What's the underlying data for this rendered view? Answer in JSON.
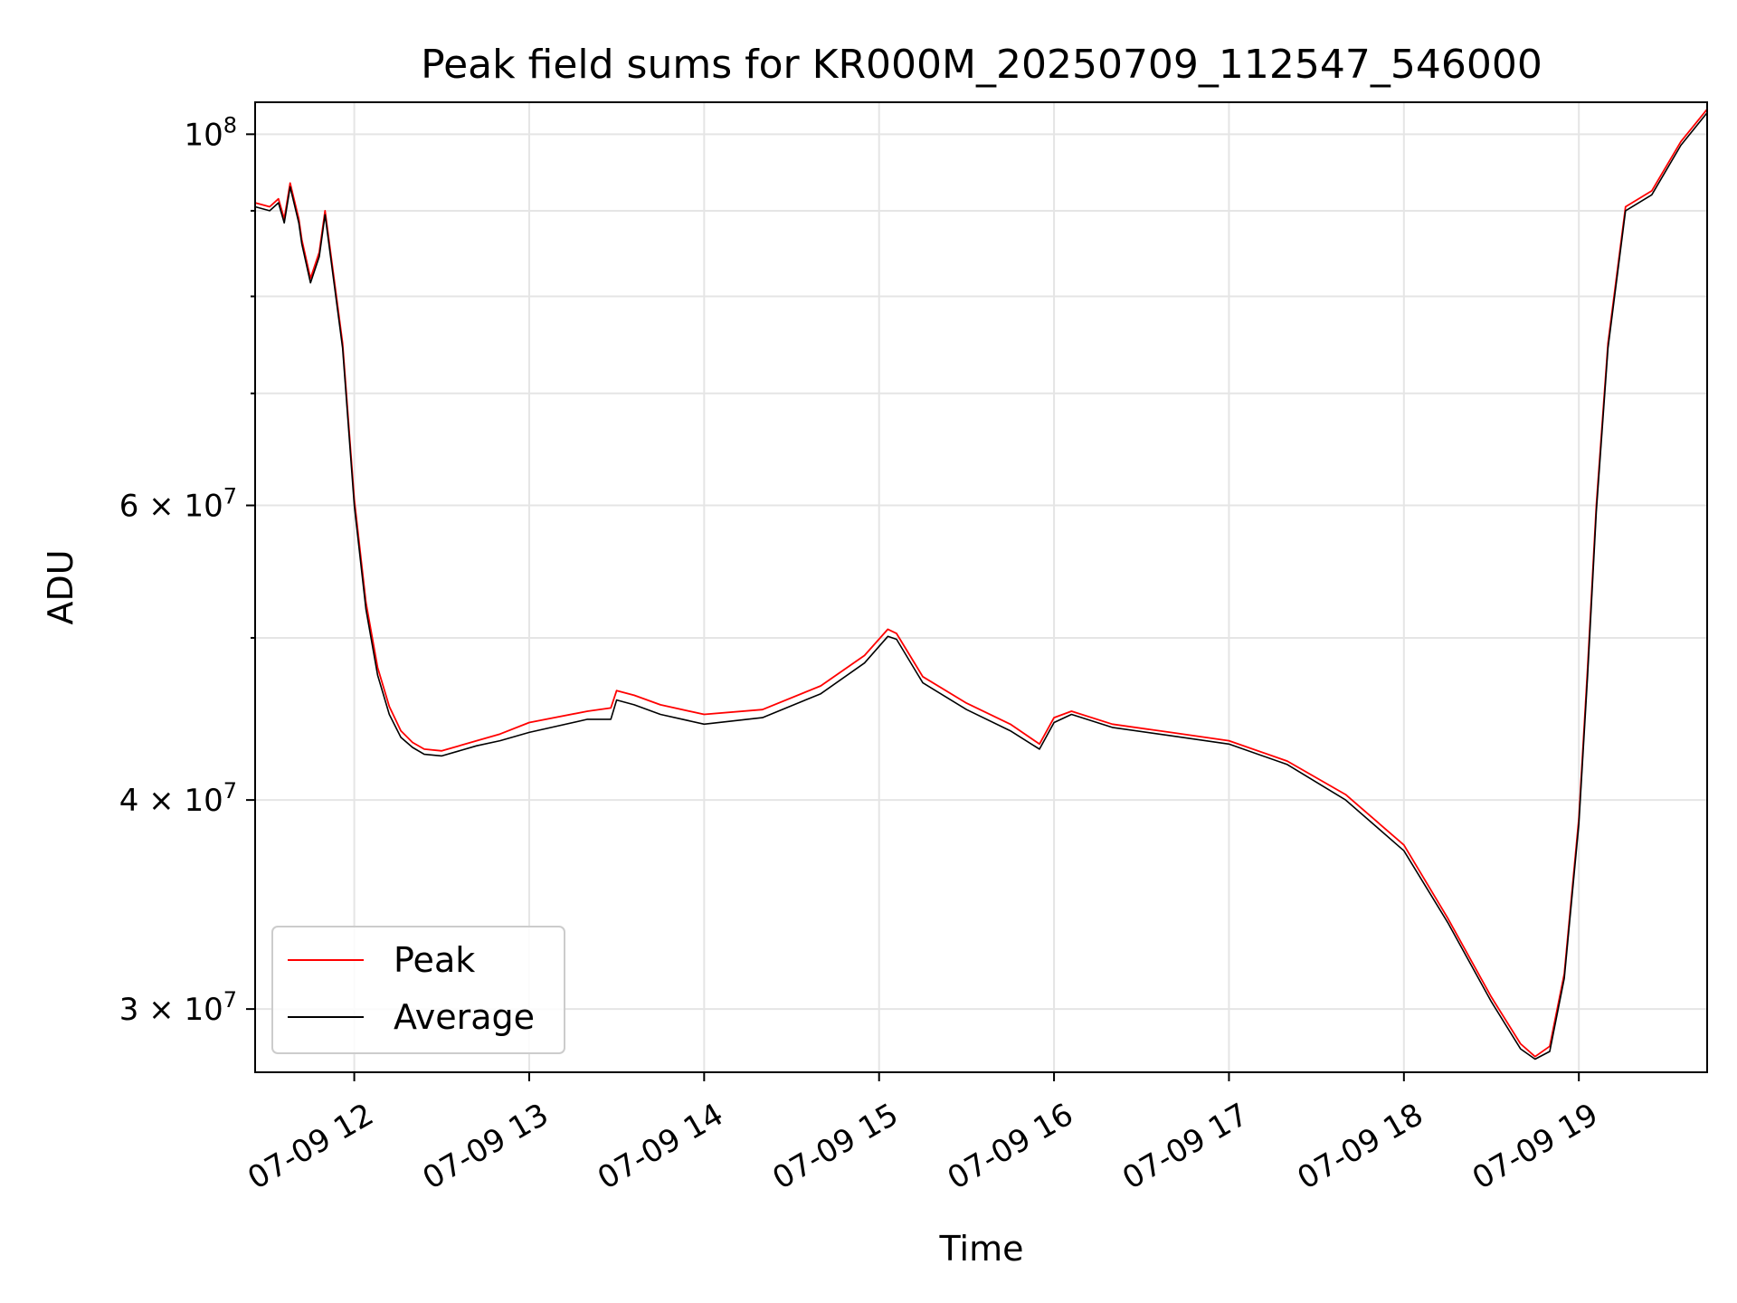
{
  "chart_data": {
    "type": "line",
    "title": "Peak field sums for KR000M_20250709_112547_546000",
    "xlabel": "Time",
    "ylabel": "ADU",
    "x_scale": "time",
    "y_scale": "log",
    "xlim": [
      "2025-07-09 11:26",
      "2025-07-09 19:44"
    ],
    "ylim": [
      27500000,
      104500000
    ],
    "grid": true,
    "legend_position": "lower-left",
    "x_ticks": [
      {
        "value": "2025-07-09 12:00",
        "label": "07-09 12"
      },
      {
        "value": "2025-07-09 13:00",
        "label": "07-09 13"
      },
      {
        "value": "2025-07-09 14:00",
        "label": "07-09 14"
      },
      {
        "value": "2025-07-09 15:00",
        "label": "07-09 15"
      },
      {
        "value": "2025-07-09 16:00",
        "label": "07-09 16"
      },
      {
        "value": "2025-07-09 17:00",
        "label": "07-09 17"
      },
      {
        "value": "2025-07-09 18:00",
        "label": "07-09 18"
      },
      {
        "value": "2025-07-09 19:00",
        "label": "07-09 19"
      }
    ],
    "y_major_ticks": [
      {
        "value": 30000000,
        "mantissa": "3",
        "base": "10",
        "exp": "7"
      },
      {
        "value": 40000000,
        "mantissa": "4",
        "base": "10",
        "exp": "7"
      },
      {
        "value": 60000000,
        "mantissa": "6",
        "base": "10",
        "exp": "7"
      },
      {
        "value": 100000000,
        "mantissa": "",
        "base": "10",
        "exp": "8"
      }
    ],
    "y_minor_grid": [
      50000000,
      70000000,
      80000000,
      90000000
    ],
    "series": [
      {
        "name": "Peak",
        "color": "#ff0000",
        "x": [
          "2025-07-09 11:26",
          "2025-07-09 11:31",
          "2025-07-09 11:34",
          "2025-07-09 11:36",
          "2025-07-09 11:38",
          "2025-07-09 11:41",
          "2025-07-09 11:42",
          "2025-07-09 11:45",
          "2025-07-09 11:48",
          "2025-07-09 11:50",
          "2025-07-09 11:56",
          "2025-07-09 12:00",
          "2025-07-09 12:04",
          "2025-07-09 12:08",
          "2025-07-09 12:12",
          "2025-07-09 12:16",
          "2025-07-09 12:20",
          "2025-07-09 12:24",
          "2025-07-09 12:30",
          "2025-07-09 12:36",
          "2025-07-09 12:42",
          "2025-07-09 12:50",
          "2025-07-09 13:00",
          "2025-07-09 13:20",
          "2025-07-09 13:28",
          "2025-07-09 13:30",
          "2025-07-09 13:36",
          "2025-07-09 13:45",
          "2025-07-09 14:00",
          "2025-07-09 14:20",
          "2025-07-09 14:40",
          "2025-07-09 14:55",
          "2025-07-09 15:03",
          "2025-07-09 15:06",
          "2025-07-09 15:15",
          "2025-07-09 15:30",
          "2025-07-09 15:45",
          "2025-07-09 15:55",
          "2025-07-09 16:00",
          "2025-07-09 16:06",
          "2025-07-09 16:20",
          "2025-07-09 16:40",
          "2025-07-09 17:00",
          "2025-07-09 17:20",
          "2025-07-09 17:40",
          "2025-07-09 18:00",
          "2025-07-09 18:15",
          "2025-07-09 18:30",
          "2025-07-09 18:40",
          "2025-07-09 18:45",
          "2025-07-09 18:50",
          "2025-07-09 18:55",
          "2025-07-09 19:00",
          "2025-07-09 19:03",
          "2025-07-09 19:06",
          "2025-07-09 19:10",
          "2025-07-09 19:16",
          "2025-07-09 19:25",
          "2025-07-09 19:35",
          "2025-07-09 19:44"
        ],
        "values": [
          91000000,
          90500000,
          91500000,
          89000000,
          93500000,
          89000000,
          86500000,
          82000000,
          85000000,
          90000000,
          75000000,
          60500000,
          52500000,
          48000000,
          45500000,
          44000000,
          43300000,
          42900000,
          42800000,
          43100000,
          43400000,
          43800000,
          44500000,
          45200000,
          45400000,
          46500000,
          46200000,
          45600000,
          45000000,
          45300000,
          46800000,
          48800000,
          50600000,
          50300000,
          47400000,
          45700000,
          44400000,
          43200000,
          44800000,
          45200000,
          44400000,
          43900000,
          43400000,
          42200000,
          40300000,
          37600000,
          34000000,
          30500000,
          28600000,
          28100000,
          28500000,
          31500000,
          39000000,
          48000000,
          60000000,
          75000000,
          90500000,
          92500000,
          99000000,
          103500000
        ]
      },
      {
        "name": "Average",
        "color": "#000000",
        "x": [
          "2025-07-09 11:26",
          "2025-07-09 11:31",
          "2025-07-09 11:34",
          "2025-07-09 11:36",
          "2025-07-09 11:38",
          "2025-07-09 11:41",
          "2025-07-09 11:42",
          "2025-07-09 11:45",
          "2025-07-09 11:48",
          "2025-07-09 11:50",
          "2025-07-09 11:56",
          "2025-07-09 12:00",
          "2025-07-09 12:04",
          "2025-07-09 12:08",
          "2025-07-09 12:12",
          "2025-07-09 12:16",
          "2025-07-09 12:20",
          "2025-07-09 12:24",
          "2025-07-09 12:30",
          "2025-07-09 12:36",
          "2025-07-09 12:42",
          "2025-07-09 12:50",
          "2025-07-09 13:00",
          "2025-07-09 13:20",
          "2025-07-09 13:28",
          "2025-07-09 13:30",
          "2025-07-09 13:36",
          "2025-07-09 13:45",
          "2025-07-09 14:00",
          "2025-07-09 14:20",
          "2025-07-09 14:40",
          "2025-07-09 14:55",
          "2025-07-09 15:03",
          "2025-07-09 15:06",
          "2025-07-09 15:15",
          "2025-07-09 15:30",
          "2025-07-09 15:45",
          "2025-07-09 15:55",
          "2025-07-09 16:00",
          "2025-07-09 16:06",
          "2025-07-09 16:20",
          "2025-07-09 16:40",
          "2025-07-09 17:00",
          "2025-07-09 17:20",
          "2025-07-09 17:40",
          "2025-07-09 18:00",
          "2025-07-09 18:15",
          "2025-07-09 18:30",
          "2025-07-09 18:40",
          "2025-07-09 18:45",
          "2025-07-09 18:50",
          "2025-07-09 18:55",
          "2025-07-09 19:00",
          "2025-07-09 19:03",
          "2025-07-09 19:06",
          "2025-07-09 19:10",
          "2025-07-09 19:16",
          "2025-07-09 19:25",
          "2025-07-09 19:35",
          "2025-07-09 19:44"
        ],
        "values": [
          90500000,
          90000000,
          91000000,
          88500000,
          93000000,
          88500000,
          86000000,
          81500000,
          84500000,
          89500000,
          74500000,
          60000000,
          52000000,
          47500000,
          45000000,
          43600000,
          43000000,
          42600000,
          42500000,
          42800000,
          43100000,
          43400000,
          43900000,
          44700000,
          44700000,
          45900000,
          45600000,
          45000000,
          44400000,
          44800000,
          46300000,
          48300000,
          50100000,
          49900000,
          47000000,
          45300000,
          44000000,
          42900000,
          44500000,
          45000000,
          44200000,
          43700000,
          43200000,
          42000000,
          40000000,
          37300000,
          33800000,
          30300000,
          28400000,
          28000000,
          28300000,
          31300000,
          38700000,
          47500000,
          59500000,
          74500000,
          90000000,
          92000000,
          98500000,
          103000000
        ]
      }
    ]
  }
}
